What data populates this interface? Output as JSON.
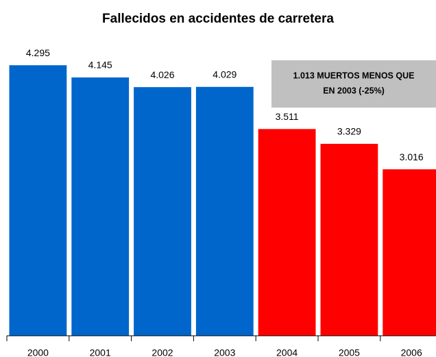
{
  "chart_data": {
    "type": "bar",
    "title": "Fallecidos en accidentes de carretera",
    "categories": [
      "2000",
      "2001",
      "2002",
      "2003",
      "2004",
      "2005",
      "2006"
    ],
    "values": [
      4295,
      4145,
      4026,
      4029,
      3511,
      3329,
      3016
    ],
    "value_labels": [
      "4.295",
      "4.145",
      "4.026",
      "4.029",
      "3.511",
      "3.329",
      "3.016"
    ],
    "colors": [
      "#0066cc",
      "#0066cc",
      "#0066cc",
      "#0066cc",
      "#ff0000",
      "#ff0000",
      "#ff0000"
    ],
    "ylim": [
      970,
      4600
    ],
    "annotation": [
      "1.013 MUERTOS MENOS QUE",
      "EN 2003 (-25%)"
    ]
  }
}
